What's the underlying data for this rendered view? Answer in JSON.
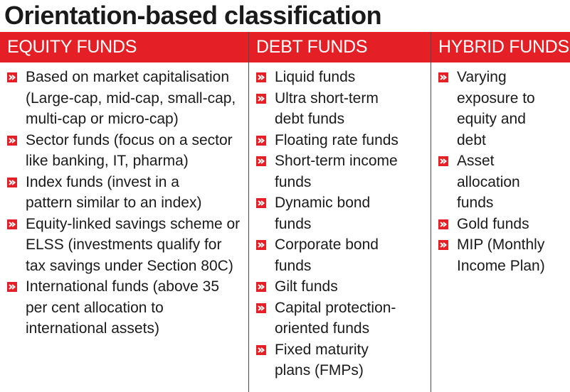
{
  "title": "Orientation-based classification",
  "columns": [
    {
      "header": "EQUITY FUNDS",
      "items": [
        "Based on market capitalisation (Large-cap, mid-cap, small-cap, multi-cap or micro-cap)",
        "Sector funds (focus on a sector like banking, IT, pharma)",
        "Index funds (invest in a pattern similar to an index)",
        "Equity-linked savings scheme or ELSS (investments qualify for tax savings under Section 80C)",
        "International funds (above 35 per cent allocation to international assets)"
      ]
    },
    {
      "header": "DEBT FUNDS",
      "items": [
        "Liquid funds",
        "Ultra short-term debt funds",
        "Floating rate funds",
        "Short-term income funds",
        "Dynamic bond funds",
        "Corporate bond funds",
        "Gilt funds",
        "Capital protection-oriented funds",
        "Fixed maturity plans (FMPs)"
      ]
    },
    {
      "header": "HYBRID FUNDS",
      "items": [
        "Varying exposure to equity and debt",
        "Asset allocation funds",
        "Gold funds",
        "MIP (Monthly Income Plan)"
      ]
    }
  ],
  "colors": {
    "accent": "#e42026",
    "divider": "#4a4a4a"
  },
  "icons": {
    "bullet": "arrow-box-icon"
  }
}
